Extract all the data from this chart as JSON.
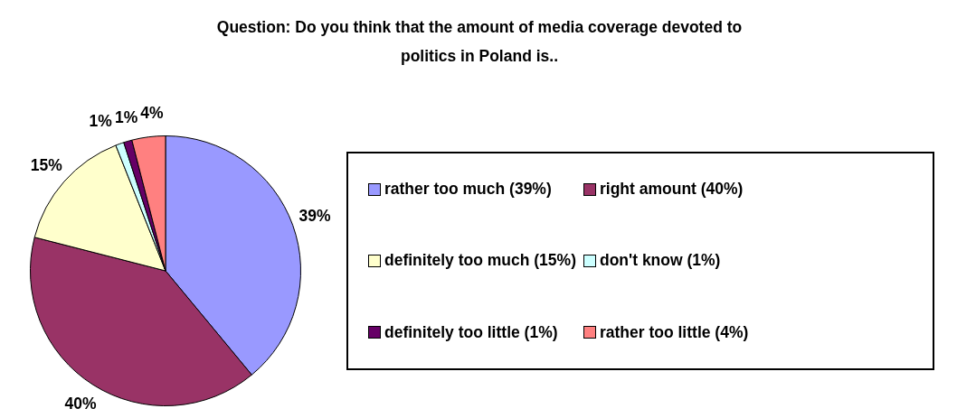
{
  "chart_data": {
    "type": "pie",
    "title": "Question: Do you think that the amount of media coverage devoted to politics in Poland is..",
    "categories": [
      "rather too much (39%)",
      "right amount (40%)",
      "definitely too much (15%)",
      "don't know (1%)",
      "definitely too little (1%)",
      "rather too little (4%)"
    ],
    "values": [
      39,
      40,
      15,
      1,
      1,
      4
    ],
    "colors": [
      "#9999ff",
      "#993366",
      "#ffffcc",
      "#ccffff",
      "#660066",
      "#ff8080"
    ],
    "value_labels": [
      "39%",
      "40%",
      "15%",
      "1%",
      "1%",
      "4%"
    ],
    "legend": "right"
  }
}
